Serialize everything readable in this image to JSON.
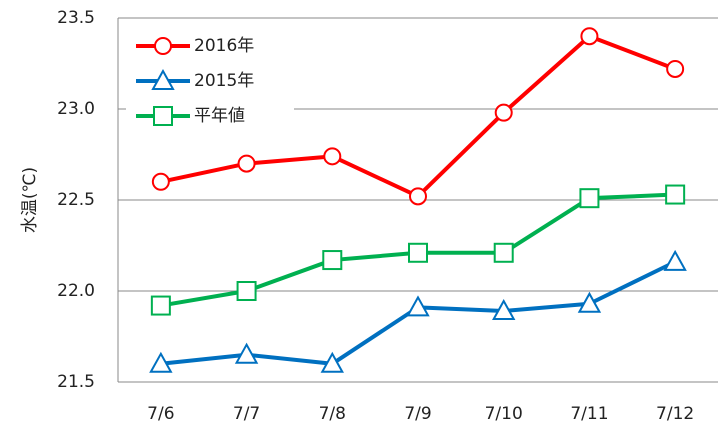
{
  "chart_data": {
    "type": "line",
    "y_label": "水温(℃)",
    "categories": [
      "7/6",
      "7/7",
      "7/8",
      "7/9",
      "7/10",
      "7/11",
      "7/12"
    ],
    "series": [
      {
        "name": "2016年",
        "color": "#ff0000",
        "marker": "circle",
        "values": [
          22.6,
          22.7,
          22.74,
          22.52,
          22.98,
          23.4,
          23.22
        ]
      },
      {
        "name": "2015年",
        "color": "#0070c0",
        "marker": "triangle",
        "values": [
          21.6,
          21.65,
          21.6,
          21.91,
          21.89,
          21.93,
          22.16
        ]
      },
      {
        "name": "平年値",
        "color": "#00b050",
        "marker": "square",
        "values": [
          21.92,
          22.0,
          22.17,
          22.21,
          22.21,
          22.51,
          22.53
        ]
      }
    ],
    "ylim": [
      21.5,
      23.5
    ],
    "yticks": [
      21.5,
      {
        "value": 22,
        "label": "22.0"
      },
      22.5,
      {
        "value": 23,
        "label": "23.0"
      },
      23.5
    ],
    "grid": true,
    "legend": "upper left"
  }
}
